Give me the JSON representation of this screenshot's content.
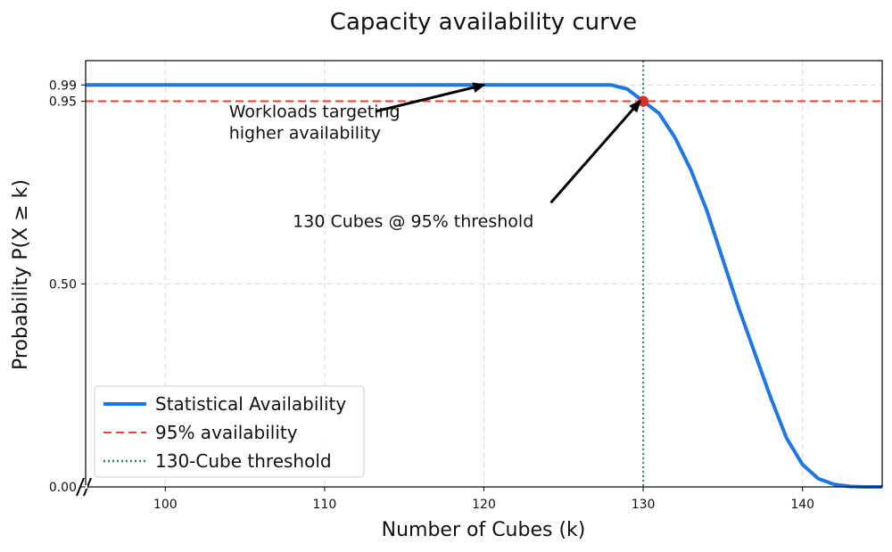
{
  "chart_data": {
    "type": "line",
    "title": "Capacity availability curve",
    "xlabel": "Number of Cubes (k)",
    "ylabel": "Probability P(X ≥ k)",
    "xlim": [
      95,
      145
    ],
    "ylim": [
      0.0,
      1.05
    ],
    "x_ticks": [
      100,
      110,
      120,
      130,
      140
    ],
    "x_tick_labels": [
      "100",
      "110",
      "120",
      "130",
      "140"
    ],
    "y_ticks": [
      0.0,
      0.5,
      0.95,
      0.99
    ],
    "y_tick_labels": [
      "0.00",
      "0.50",
      "0.95",
      "0.99"
    ],
    "grid": true,
    "legend_position": "bottom-left",
    "series": [
      {
        "name": "Statistical Availability",
        "kind": "line",
        "color": "#1f77e6",
        "x": [
          95,
          100,
          105,
          110,
          115,
          120,
          125,
          128,
          129,
          130,
          131,
          132,
          133,
          134,
          135,
          136,
          137,
          138,
          139,
          140,
          141,
          142,
          143,
          144,
          145
        ],
        "y": [
          0.99,
          0.99,
          0.99,
          0.99,
          0.99,
          0.99,
          0.99,
          0.99,
          0.98,
          0.95,
          0.92,
          0.86,
          0.78,
          0.68,
          0.56,
          0.44,
          0.33,
          0.22,
          0.12,
          0.055,
          0.02,
          0.006,
          0.001,
          0.0,
          0.0
        ]
      },
      {
        "name": "95% availability",
        "kind": "hline",
        "y": 0.95,
        "color": "#d9453c"
      },
      {
        "name": "130-Cube threshold",
        "kind": "vline",
        "x": 130,
        "color": "#2e8b57"
      }
    ],
    "highlight_point": {
      "x": 130,
      "y": 0.95,
      "color": "#d9302a"
    },
    "annotations": [
      {
        "lines": [
          "Workloads targeting",
          "higher availability"
        ],
        "text_x": 104,
        "text_y": 0.91,
        "arrow_from": [
          113.2,
          0.925
        ],
        "arrow_to": [
          120,
          0.99
        ]
      },
      {
        "lines": [
          "130 Cubes @ 95% threshold"
        ],
        "text_x": 108,
        "text_y": 0.64,
        "arrow_from": [
          124.2,
          0.7
        ],
        "arrow_to": [
          129.8,
          0.95
        ]
      }
    ]
  }
}
